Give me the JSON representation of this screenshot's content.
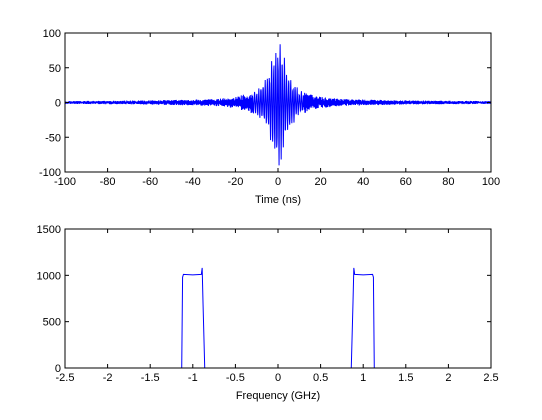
{
  "figure": {
    "background": "#ffffff",
    "axes_color": "#000000",
    "line_color": "#0000ff"
  },
  "chart_data": [
    {
      "type": "line",
      "title": "",
      "xlabel": "Time (ns)",
      "ylabel": "",
      "xlim": [
        -100,
        100
      ],
      "ylim": [
        -100,
        100
      ],
      "xticks": [
        -100,
        -80,
        -60,
        -40,
        -20,
        0,
        20,
        40,
        60,
        80,
        100
      ],
      "yticks": [
        -100,
        -50,
        0,
        50,
        100
      ],
      "grid": false,
      "legend": "none",
      "series": [
        {
          "color": "#0000ff",
          "signal": "band-limited pulse centered at 0 ns",
          "peak_abs": 97,
          "samples_x": [
            -100,
            -60,
            -30,
            -20,
            -10,
            -5,
            -2,
            0,
            2,
            5,
            10,
            20,
            30,
            60,
            100
          ],
          "envelope_y": [
            2,
            3,
            5,
            8,
            18,
            40,
            80,
            97,
            80,
            40,
            18,
            8,
            5,
            3,
            2
          ]
        }
      ]
    },
    {
      "type": "line",
      "title": "",
      "xlabel": "Frequency (GHz)",
      "ylabel": "",
      "xlim": [
        -2.5,
        2.5
      ],
      "ylim": [
        0,
        1500
      ],
      "xticks": [
        -2.5,
        -2,
        -1.5,
        -1,
        -0.5,
        0,
        0.5,
        1,
        1.5,
        2,
        2.5
      ],
      "yticks": [
        0,
        500,
        1000,
        1500
      ],
      "grid": false,
      "legend": "none",
      "series": [
        {
          "color": "#0000ff",
          "x": [
            -2.5,
            -1.13,
            -1.12,
            -1.11,
            -1.0,
            -0.9,
            -0.89,
            -0.88,
            -0.86,
            0.86,
            0.88,
            0.89,
            0.9,
            1.0,
            1.11,
            1.12,
            1.13,
            2.5
          ],
          "y": [
            0,
            0,
            980,
            1010,
            1005,
            1010,
            1080,
            700,
            0,
            0,
            700,
            1080,
            1010,
            1005,
            1010,
            980,
            0,
            0
          ]
        }
      ]
    }
  ]
}
